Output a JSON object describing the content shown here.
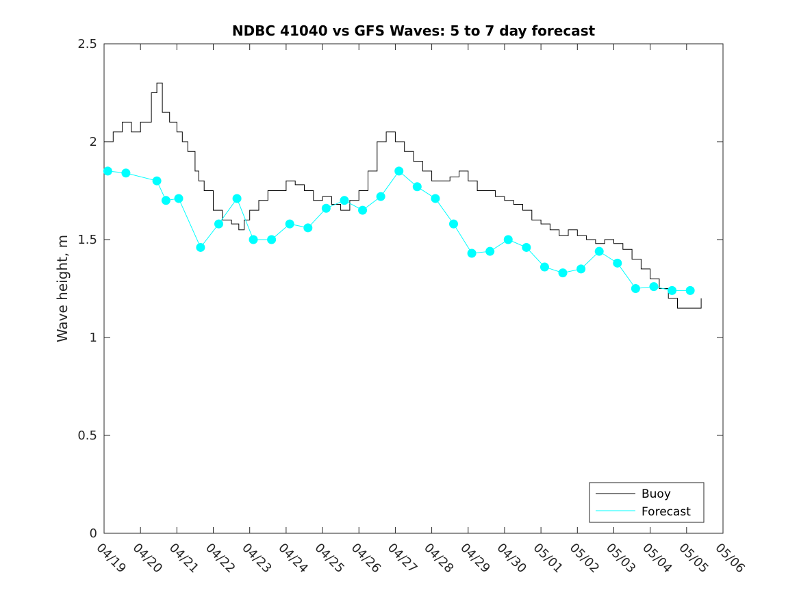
{
  "chart_data": {
    "type": "line",
    "title": "NDBC 41040 vs GFS Waves: 5 to 7 day forecast",
    "xlabel": "",
    "ylabel": "Wave height, m",
    "x_ticks": [
      "04/19",
      "04/20",
      "04/21",
      "04/22",
      "04/23",
      "04/24",
      "04/25",
      "04/26",
      "04/27",
      "04/28",
      "04/29",
      "04/30",
      "05/01",
      "05/02",
      "05/03",
      "05/04",
      "05/05",
      "05/06"
    ],
    "xlim": [
      0,
      17
    ],
    "ylim": [
      0,
      2.5
    ],
    "y_ticks": [
      "0",
      "0.5",
      "1",
      "1.5",
      "2",
      "2.5"
    ],
    "y_tick_values": [
      0,
      0.5,
      1,
      1.5,
      2,
      2.5
    ],
    "grid": false,
    "legend_position": "bottom-right",
    "colors": {
      "buoy": "#000000",
      "forecast": "#00ffff",
      "axes": "#262626"
    },
    "series": [
      {
        "name": "Buoy",
        "x": [
          0,
          0.25,
          0.5,
          0.75,
          1,
          1.2,
          1.3,
          1.45,
          1.6,
          1.8,
          2,
          2.15,
          2.3,
          2.5,
          2.6,
          2.75,
          3,
          3.25,
          3.5,
          3.7,
          3.85,
          4,
          4.25,
          4.5,
          4.75,
          5,
          5.25,
          5.5,
          5.75,
          6,
          6.25,
          6.5,
          6.75,
          7,
          7.25,
          7.5,
          7.75,
          8,
          8.25,
          8.5,
          8.75,
          9,
          9.25,
          9.5,
          9.75,
          10,
          10.25,
          10.5,
          10.75,
          11,
          11.25,
          11.5,
          11.75,
          12,
          12.25,
          12.5,
          12.75,
          13,
          13.25,
          13.5,
          13.75,
          14,
          14.25,
          14.5,
          14.75,
          15,
          15.25,
          15.5,
          15.75,
          16,
          16.2,
          16.4
        ],
        "y": [
          2.0,
          2.05,
          2.1,
          2.05,
          2.1,
          2.1,
          2.25,
          2.3,
          2.15,
          2.1,
          2.05,
          2.0,
          1.95,
          1.85,
          1.8,
          1.75,
          1.65,
          1.6,
          1.58,
          1.55,
          1.6,
          1.65,
          1.7,
          1.75,
          1.75,
          1.8,
          1.78,
          1.75,
          1.7,
          1.72,
          1.68,
          1.65,
          1.7,
          1.75,
          1.85,
          2.0,
          2.05,
          2.0,
          1.95,
          1.9,
          1.85,
          1.8,
          1.8,
          1.82,
          1.85,
          1.8,
          1.75,
          1.75,
          1.72,
          1.7,
          1.68,
          1.65,
          1.6,
          1.58,
          1.55,
          1.52,
          1.55,
          1.52,
          1.5,
          1.48,
          1.5,
          1.48,
          1.45,
          1.4,
          1.35,
          1.3,
          1.25,
          1.2,
          1.15,
          1.15,
          1.15,
          1.2
        ]
      },
      {
        "name": "Forecast",
        "x": [
          0.1,
          0.6,
          1.45,
          1.7,
          2.05,
          2.65,
          3.15,
          3.65,
          4.1,
          4.6,
          5.1,
          5.6,
          6.1,
          6.6,
          7.1,
          7.6,
          8.1,
          8.6,
          9.1,
          9.6,
          10.1,
          10.6,
          11.1,
          11.6,
          12.1,
          12.6,
          13.1,
          13.6,
          14.1,
          14.6,
          15.1,
          15.6,
          16.1
        ],
        "y": [
          1.85,
          1.84,
          1.8,
          1.7,
          1.71,
          1.46,
          1.58,
          1.71,
          1.5,
          1.5,
          1.58,
          1.56,
          1.66,
          1.7,
          1.65,
          1.72,
          1.85,
          1.77,
          1.71,
          1.58,
          1.43,
          1.44,
          1.5,
          1.46,
          1.36,
          1.33,
          1.35,
          1.44,
          1.38,
          1.25,
          1.26,
          1.24,
          1.24
        ]
      }
    ]
  }
}
